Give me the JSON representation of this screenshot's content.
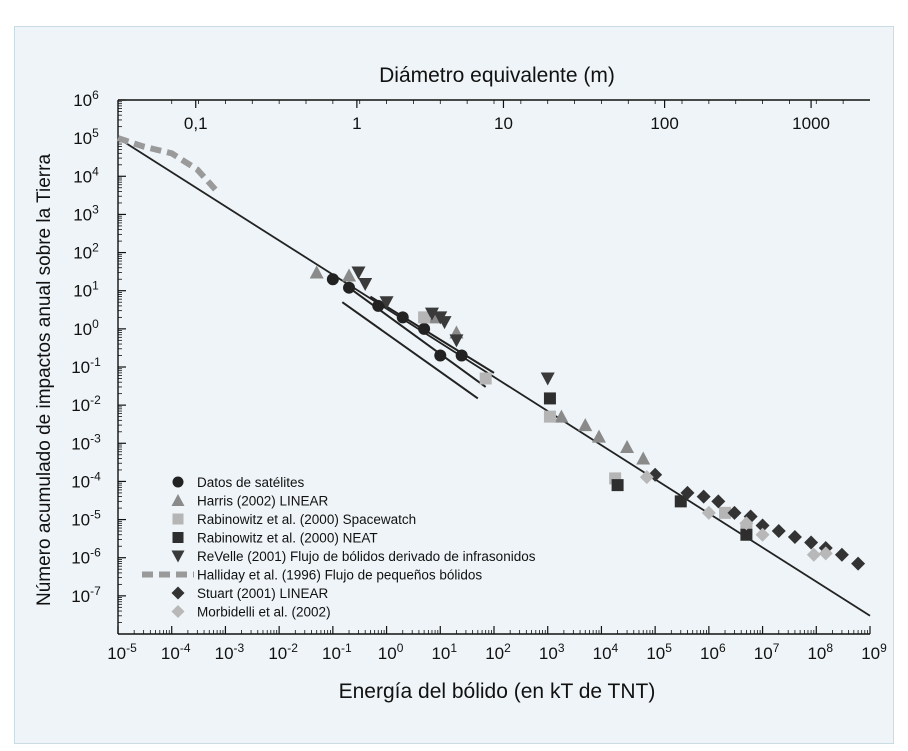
{
  "chart_data": {
    "type": "scatter",
    "title_top_axis": "Diámetro equivalente (m)",
    "xlabel": "Energía del bólido (en  kT de TNT)",
    "ylabel": "Número acumulado de impactos anual sobre la Tierra",
    "xscale": "log",
    "yscale": "log",
    "xlim": [
      1e-05,
      1000000000.0
    ],
    "ylim": [
      1e-08,
      1000000.0
    ],
    "grid": false,
    "legend_position": "lower-left",
    "x_tick_labels": [
      {
        "base": "10",
        "exp": "-5"
      },
      {
        "base": "10",
        "exp": "-4"
      },
      {
        "base": "10",
        "exp": "-3"
      },
      {
        "base": "10",
        "exp": "-2"
      },
      {
        "base": "10",
        "exp": "-1"
      },
      {
        "base": "10",
        "exp": "0"
      },
      {
        "base": "10",
        "exp": "1"
      },
      {
        "base": "10",
        "exp": "2"
      },
      {
        "base": "10",
        "exp": "3"
      },
      {
        "base": "10",
        "exp": "4"
      },
      {
        "base": "10",
        "exp": "5"
      },
      {
        "base": "10",
        "exp": "6"
      },
      {
        "base": "10",
        "exp": "7"
      },
      {
        "base": "10",
        "exp": "8"
      },
      {
        "base": "10",
        "exp": "9"
      }
    ],
    "y_tick_labels": [
      {
        "base": "10",
        "exp": "6"
      },
      {
        "base": "10",
        "exp": "5"
      },
      {
        "base": "10",
        "exp": "4"
      },
      {
        "base": "10",
        "exp": "3"
      },
      {
        "base": "10",
        "exp": "2"
      },
      {
        "base": "10",
        "exp": "1"
      },
      {
        "base": "10",
        "exp": "0"
      },
      {
        "base": "10",
        "exp": "-1"
      },
      {
        "base": "10",
        "exp": "-2"
      },
      {
        "base": "10",
        "exp": "-3"
      },
      {
        "base": "10",
        "exp": "-4"
      },
      {
        "base": "10",
        "exp": "-5"
      },
      {
        "base": "10",
        "exp": "-6"
      },
      {
        "base": "10",
        "exp": "-7"
      }
    ],
    "top_axis_ticks": [
      {
        "label": "0,1",
        "energy": 0.00028
      },
      {
        "label": "1",
        "energy": 0.28
      },
      {
        "label": "10",
        "energy": 150
      },
      {
        "label": "100",
        "energy": 150000
      },
      {
        "label": "1000",
        "energy": 80000000
      }
    ],
    "power_law_fit": [
      [
        1e-05,
        100000
      ],
      [
        1000000000.0,
        3e-08
      ]
    ],
    "satellite_trend_lines": [
      [
        [
          0.15,
          5
        ],
        [
          50,
          0.015
        ]
      ],
      [
        [
          0.2,
          12
        ],
        [
          70,
          0.03
        ]
      ],
      [
        [
          0.5,
          7
        ],
        [
          100,
          0.07
        ]
      ]
    ],
    "series": [
      {
        "name": "Datos de satélites",
        "marker": "circle",
        "color": "#222222",
        "points": [
          [
            0.1,
            20
          ],
          [
            0.2,
            12
          ],
          [
            0.7,
            4
          ],
          [
            2,
            2
          ],
          [
            5,
            1
          ],
          [
            10,
            0.2
          ],
          [
            25,
            0.2
          ]
        ]
      },
      {
        "name": "Harris (2002) LINEAR",
        "marker": "triangle-up",
        "color": "#8a8a8a",
        "points": [
          [
            0.05,
            30
          ],
          [
            0.2,
            25
          ],
          [
            8,
            2
          ],
          [
            20,
            0.8
          ],
          [
            1800,
            0.005
          ],
          [
            5000,
            0.003
          ],
          [
            9000,
            0.0015
          ],
          [
            30000,
            0.0008
          ],
          [
            60000,
            0.0004
          ]
        ]
      },
      {
        "name": "Rabinowitz et al. (2000) Spacewatch",
        "marker": "square",
        "color": "#b5b5b5",
        "points": [
          [
            5,
            2
          ],
          [
            70,
            0.05
          ],
          [
            1100,
            0.005
          ],
          [
            18000,
            0.00012
          ],
          [
            2000000,
            1.5e-05
          ],
          [
            5000000,
            6e-06
          ]
        ]
      },
      {
        "name": "Rabinowitz et al. (2000) NEAT",
        "marker": "square",
        "color": "#2e2e2e",
        "points": [
          [
            1100,
            0.015
          ],
          [
            20000,
            8e-05
          ],
          [
            300000,
            3e-05
          ],
          [
            5000000,
            4e-06
          ]
        ]
      },
      {
        "name": "ReVelle (2001) Flujo de bólidos derivado de infrasonidos",
        "marker": "triangle-down",
        "color": "#3a3a3a",
        "points": [
          [
            0.3,
            30
          ],
          [
            0.4,
            15
          ],
          [
            1,
            5
          ],
          [
            7,
            2.5
          ],
          [
            10,
            2
          ],
          [
            12,
            1.5
          ],
          [
            20,
            0.5
          ],
          [
            1000,
            0.05
          ]
        ]
      },
      {
        "name": "Halliday et al. (1996) Flujo de pequeños bólidos",
        "marker": "dash",
        "color": "#9a9a9a",
        "points": [
          [
            1e-05,
            100000
          ],
          [
            3e-05,
            60000
          ],
          [
            0.0001,
            40000
          ],
          [
            0.0003,
            15000
          ],
          [
            0.0007,
            4000
          ]
        ]
      },
      {
        "name": "Stuart (2001) LINEAR",
        "marker": "diamond",
        "color": "#333333",
        "points": [
          [
            100000,
            0.00015
          ],
          [
            400000,
            5e-05
          ],
          [
            800000,
            4e-05
          ],
          [
            1500000,
            3e-05
          ],
          [
            3000000,
            1.5e-05
          ],
          [
            6000000,
            1.2e-05
          ],
          [
            10000000,
            7e-06
          ],
          [
            20000000,
            5e-06
          ],
          [
            40000000,
            3.5e-06
          ],
          [
            80000000,
            2.5e-06
          ],
          [
            150000000,
            1.8e-06
          ],
          [
            300000000,
            1.2e-06
          ],
          [
            600000000,
            7e-07
          ]
        ]
      },
      {
        "name": "Morbidelli et al. (2002)",
        "marker": "diamond",
        "color": "#b8b8b8",
        "points": [
          [
            70000,
            0.00013
          ],
          [
            1000000,
            1.5e-05
          ],
          [
            5000000,
            8e-06
          ],
          [
            10000000,
            4e-06
          ],
          [
            90000000,
            1.2e-06
          ],
          [
            150000000,
            1.3e-06
          ]
        ]
      }
    ]
  }
}
